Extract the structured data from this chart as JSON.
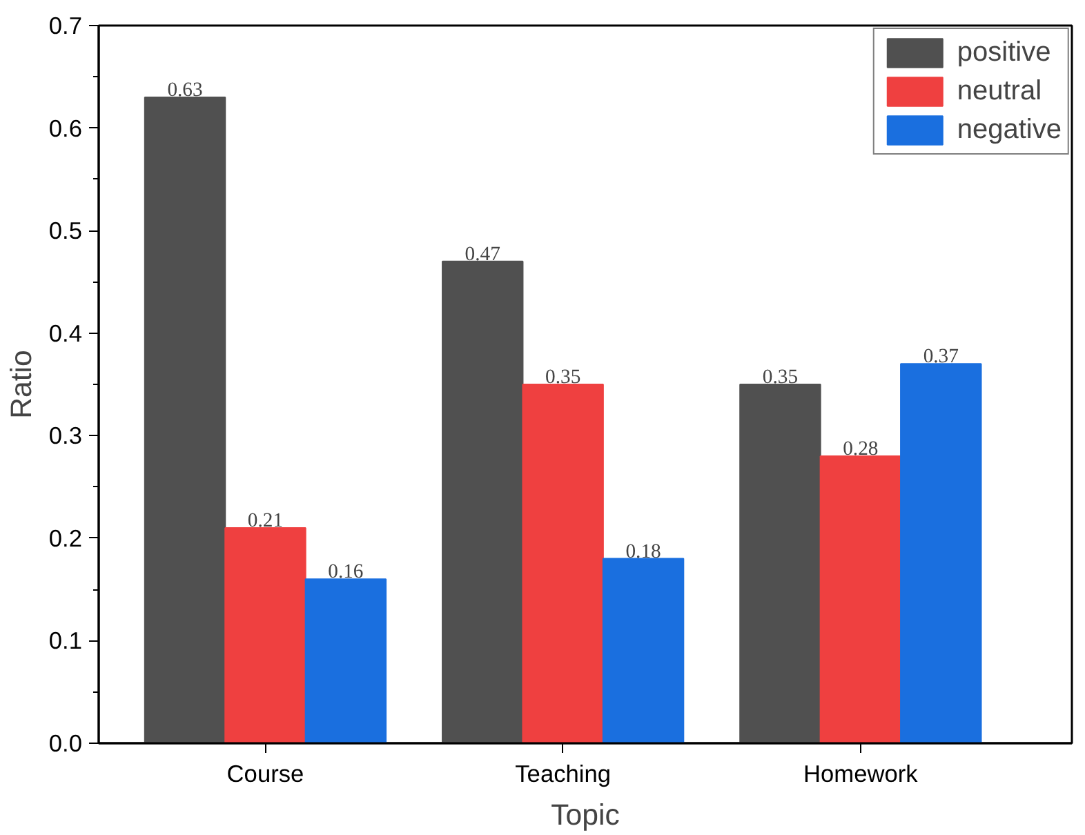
{
  "chart_data": {
    "type": "bar",
    "xlabel": "Topic",
    "ylabel": "Ratio",
    "categories": [
      "Course",
      "Teaching",
      "Homework"
    ],
    "series": [
      {
        "name": "positive",
        "color": "#505050",
        "values": [
          0.63,
          0.47,
          0.35
        ]
      },
      {
        "name": "neutral",
        "color": "#ef4040",
        "values": [
          0.21,
          0.35,
          0.28
        ]
      },
      {
        "name": "negative",
        "color": "#1a6fdf",
        "values": [
          0.16,
          0.18,
          0.37
        ]
      }
    ],
    "ylim": [
      0,
      0.7
    ],
    "yticks": [
      {
        "value": 0,
        "label": "0.0"
      },
      {
        "value": 0.1,
        "label": "0.1"
      },
      {
        "value": 0.2,
        "label": "0.2"
      },
      {
        "value": 0.3,
        "label": "0.3"
      },
      {
        "value": 0.4,
        "label": "0.4"
      },
      {
        "value": 0.5,
        "label": "0.5"
      },
      {
        "value": 0.6,
        "label": "0.6"
      },
      {
        "value": 0.7,
        "label": "0.7"
      }
    ],
    "data_labels": true,
    "grid": false,
    "legend": "top right"
  }
}
